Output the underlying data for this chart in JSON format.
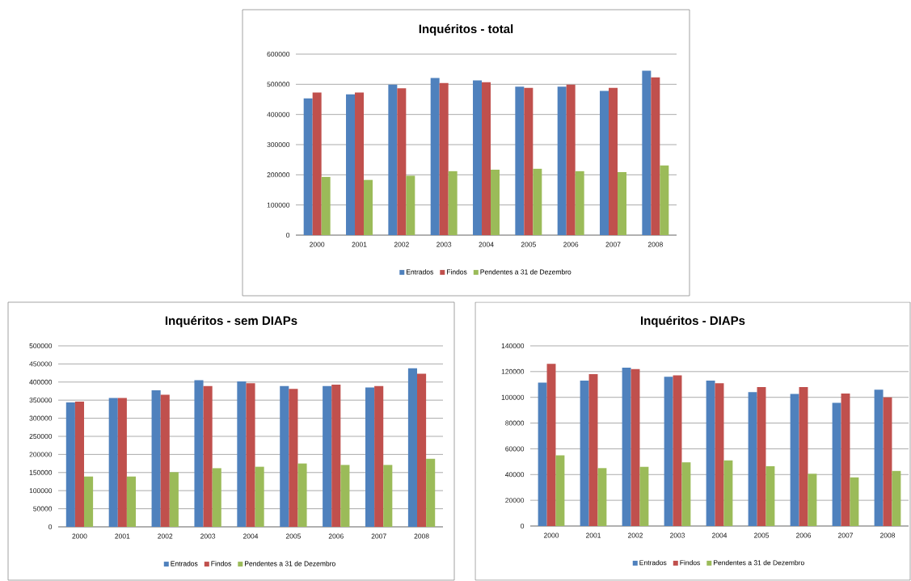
{
  "chart_data": [
    {
      "type": "bar",
      "title": "Inquéritos - total",
      "categories": [
        "2000",
        "2001",
        "2002",
        "2003",
        "2004",
        "2005",
        "2006",
        "2007",
        "2008"
      ],
      "series": [
        {
          "name": "Entrados",
          "color": "#4f81bd",
          "values": [
            453000,
            467000,
            499000,
            521000,
            513000,
            492000,
            492000,
            478000,
            545000
          ]
        },
        {
          "name": "Findos",
          "color": "#c0504d",
          "values": [
            473000,
            473000,
            487000,
            504000,
            507000,
            488000,
            499000,
            488000,
            523000
          ]
        },
        {
          "name": "Pendentes a 31 de Dezembro",
          "color": "#9bbb59",
          "values": [
            193000,
            183000,
            197000,
            212000,
            217000,
            220000,
            212000,
            209000,
            231000
          ]
        }
      ],
      "ylim": [
        0,
        600000
      ],
      "yticks": [
        0,
        100000,
        200000,
        300000,
        400000,
        500000,
        600000
      ],
      "grid": "y",
      "legend": "bottom"
    },
    {
      "type": "bar",
      "title": "Inquéritos - sem DIAPs",
      "categories": [
        "2000",
        "2001",
        "2002",
        "2003",
        "2004",
        "2005",
        "2006",
        "2007",
        "2008"
      ],
      "series": [
        {
          "name": "Entrados",
          "color": "#4f81bd",
          "values": [
            344000,
            356000,
            377000,
            405000,
            402000,
            389000,
            389000,
            385000,
            438000
          ]
        },
        {
          "name": "Findos",
          "color": "#c0504d",
          "values": [
            346000,
            356000,
            365000,
            389000,
            397000,
            381000,
            393000,
            389000,
            423000
          ]
        },
        {
          "name": "Pendentes a 31 de Dezembro",
          "color": "#9bbb59",
          "values": [
            139000,
            139000,
            151000,
            162000,
            166000,
            175000,
            171000,
            171000,
            188000
          ]
        }
      ],
      "ylim": [
        0,
        500000
      ],
      "yticks": [
        0,
        50000,
        100000,
        150000,
        200000,
        250000,
        300000,
        350000,
        400000,
        450000,
        500000
      ],
      "grid": "y",
      "legend": "bottom"
    },
    {
      "type": "bar",
      "title": "Inquéritos - DIAPs",
      "categories": [
        "2000",
        "2001",
        "2002",
        "2003",
        "2004",
        "2005",
        "2006",
        "2007",
        "2008"
      ],
      "series": [
        {
          "name": "Entrados",
          "color": "#4f81bd",
          "values": [
            111500,
            113000,
            123000,
            116000,
            113000,
            104000,
            102600,
            95700,
            106000
          ]
        },
        {
          "name": "Findos",
          "color": "#c0504d",
          "values": [
            126000,
            118000,
            122000,
            117000,
            111000,
            108000,
            108000,
            103000,
            100000
          ]
        },
        {
          "name": "Pendentes a 31 de Dezembro",
          "color": "#9bbb59",
          "values": [
            55000,
            45000,
            46000,
            49500,
            51000,
            46500,
            40600,
            37800,
            42800
          ]
        }
      ],
      "ylim": [
        0,
        140000
      ],
      "yticks": [
        0,
        20000,
        40000,
        60000,
        80000,
        100000,
        120000,
        140000
      ],
      "grid": "y",
      "legend": "bottom"
    }
  ]
}
